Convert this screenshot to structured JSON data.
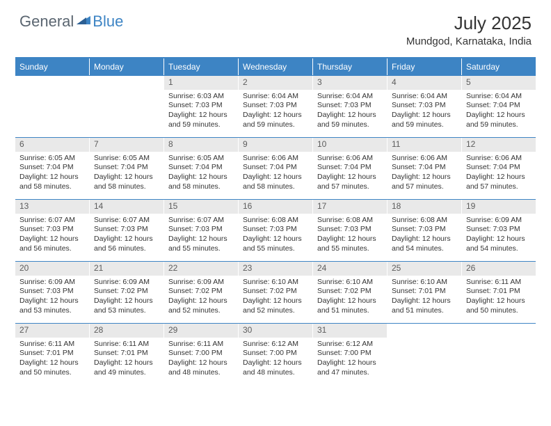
{
  "brand": {
    "text_general": "General",
    "text_blue": "Blue"
  },
  "title": {
    "month": "July 2025",
    "location": "Mundgod, Karnataka, India"
  },
  "colors": {
    "header_bg": "#3d84c4",
    "header_text": "#ffffff",
    "daynum_bg": "#e9e9e9",
    "border": "#3d84c4",
    "body_text": "#333333"
  },
  "typography": {
    "month_fontsize": 26,
    "location_fontsize": 15,
    "dayhead_fontsize": 12,
    "daynum_fontsize": 12,
    "cell_fontsize": 10.5
  },
  "day_headers": [
    "Sunday",
    "Monday",
    "Tuesday",
    "Wednesday",
    "Thursday",
    "Friday",
    "Saturday"
  ],
  "weeks": [
    [
      {
        "empty": true
      },
      {
        "empty": true
      },
      {
        "num": "1",
        "sunrise": "Sunrise: 6:03 AM",
        "sunset": "Sunset: 7:03 PM",
        "daylight": "Daylight: 12 hours and 59 minutes."
      },
      {
        "num": "2",
        "sunrise": "Sunrise: 6:04 AM",
        "sunset": "Sunset: 7:03 PM",
        "daylight": "Daylight: 12 hours and 59 minutes."
      },
      {
        "num": "3",
        "sunrise": "Sunrise: 6:04 AM",
        "sunset": "Sunset: 7:03 PM",
        "daylight": "Daylight: 12 hours and 59 minutes."
      },
      {
        "num": "4",
        "sunrise": "Sunrise: 6:04 AM",
        "sunset": "Sunset: 7:03 PM",
        "daylight": "Daylight: 12 hours and 59 minutes."
      },
      {
        "num": "5",
        "sunrise": "Sunrise: 6:04 AM",
        "sunset": "Sunset: 7:04 PM",
        "daylight": "Daylight: 12 hours and 59 minutes."
      }
    ],
    [
      {
        "num": "6",
        "sunrise": "Sunrise: 6:05 AM",
        "sunset": "Sunset: 7:04 PM",
        "daylight": "Daylight: 12 hours and 58 minutes."
      },
      {
        "num": "7",
        "sunrise": "Sunrise: 6:05 AM",
        "sunset": "Sunset: 7:04 PM",
        "daylight": "Daylight: 12 hours and 58 minutes."
      },
      {
        "num": "8",
        "sunrise": "Sunrise: 6:05 AM",
        "sunset": "Sunset: 7:04 PM",
        "daylight": "Daylight: 12 hours and 58 minutes."
      },
      {
        "num": "9",
        "sunrise": "Sunrise: 6:06 AM",
        "sunset": "Sunset: 7:04 PM",
        "daylight": "Daylight: 12 hours and 58 minutes."
      },
      {
        "num": "10",
        "sunrise": "Sunrise: 6:06 AM",
        "sunset": "Sunset: 7:04 PM",
        "daylight": "Daylight: 12 hours and 57 minutes."
      },
      {
        "num": "11",
        "sunrise": "Sunrise: 6:06 AM",
        "sunset": "Sunset: 7:04 PM",
        "daylight": "Daylight: 12 hours and 57 minutes."
      },
      {
        "num": "12",
        "sunrise": "Sunrise: 6:06 AM",
        "sunset": "Sunset: 7:04 PM",
        "daylight": "Daylight: 12 hours and 57 minutes."
      }
    ],
    [
      {
        "num": "13",
        "sunrise": "Sunrise: 6:07 AM",
        "sunset": "Sunset: 7:03 PM",
        "daylight": "Daylight: 12 hours and 56 minutes."
      },
      {
        "num": "14",
        "sunrise": "Sunrise: 6:07 AM",
        "sunset": "Sunset: 7:03 PM",
        "daylight": "Daylight: 12 hours and 56 minutes."
      },
      {
        "num": "15",
        "sunrise": "Sunrise: 6:07 AM",
        "sunset": "Sunset: 7:03 PM",
        "daylight": "Daylight: 12 hours and 55 minutes."
      },
      {
        "num": "16",
        "sunrise": "Sunrise: 6:08 AM",
        "sunset": "Sunset: 7:03 PM",
        "daylight": "Daylight: 12 hours and 55 minutes."
      },
      {
        "num": "17",
        "sunrise": "Sunrise: 6:08 AM",
        "sunset": "Sunset: 7:03 PM",
        "daylight": "Daylight: 12 hours and 55 minutes."
      },
      {
        "num": "18",
        "sunrise": "Sunrise: 6:08 AM",
        "sunset": "Sunset: 7:03 PM",
        "daylight": "Daylight: 12 hours and 54 minutes."
      },
      {
        "num": "19",
        "sunrise": "Sunrise: 6:09 AM",
        "sunset": "Sunset: 7:03 PM",
        "daylight": "Daylight: 12 hours and 54 minutes."
      }
    ],
    [
      {
        "num": "20",
        "sunrise": "Sunrise: 6:09 AM",
        "sunset": "Sunset: 7:03 PM",
        "daylight": "Daylight: 12 hours and 53 minutes."
      },
      {
        "num": "21",
        "sunrise": "Sunrise: 6:09 AM",
        "sunset": "Sunset: 7:02 PM",
        "daylight": "Daylight: 12 hours and 53 minutes."
      },
      {
        "num": "22",
        "sunrise": "Sunrise: 6:09 AM",
        "sunset": "Sunset: 7:02 PM",
        "daylight": "Daylight: 12 hours and 52 minutes."
      },
      {
        "num": "23",
        "sunrise": "Sunrise: 6:10 AM",
        "sunset": "Sunset: 7:02 PM",
        "daylight": "Daylight: 12 hours and 52 minutes."
      },
      {
        "num": "24",
        "sunrise": "Sunrise: 6:10 AM",
        "sunset": "Sunset: 7:02 PM",
        "daylight": "Daylight: 12 hours and 51 minutes."
      },
      {
        "num": "25",
        "sunrise": "Sunrise: 6:10 AM",
        "sunset": "Sunset: 7:01 PM",
        "daylight": "Daylight: 12 hours and 51 minutes."
      },
      {
        "num": "26",
        "sunrise": "Sunrise: 6:11 AM",
        "sunset": "Sunset: 7:01 PM",
        "daylight": "Daylight: 12 hours and 50 minutes."
      }
    ],
    [
      {
        "num": "27",
        "sunrise": "Sunrise: 6:11 AM",
        "sunset": "Sunset: 7:01 PM",
        "daylight": "Daylight: 12 hours and 50 minutes."
      },
      {
        "num": "28",
        "sunrise": "Sunrise: 6:11 AM",
        "sunset": "Sunset: 7:01 PM",
        "daylight": "Daylight: 12 hours and 49 minutes."
      },
      {
        "num": "29",
        "sunrise": "Sunrise: 6:11 AM",
        "sunset": "Sunset: 7:00 PM",
        "daylight": "Daylight: 12 hours and 48 minutes."
      },
      {
        "num": "30",
        "sunrise": "Sunrise: 6:12 AM",
        "sunset": "Sunset: 7:00 PM",
        "daylight": "Daylight: 12 hours and 48 minutes."
      },
      {
        "num": "31",
        "sunrise": "Sunrise: 6:12 AM",
        "sunset": "Sunset: 7:00 PM",
        "daylight": "Daylight: 12 hours and 47 minutes."
      },
      {
        "empty": true
      },
      {
        "empty": true
      }
    ]
  ]
}
